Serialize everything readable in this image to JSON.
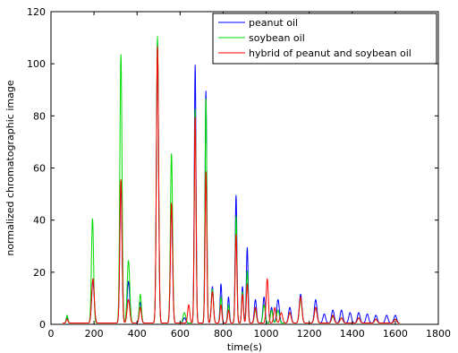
{
  "chart_data": {
    "type": "line",
    "title": "",
    "xlabel": "time(s)",
    "ylabel": "normalized chromatographic image",
    "xlim": [
      0,
      1800
    ],
    "ylim": [
      0,
      120
    ],
    "x_ticks": [
      "0",
      "200",
      "400",
      "600",
      "800",
      "1000",
      "1200",
      "1400",
      "1600",
      "1800"
    ],
    "y_ticks": [
      "0",
      "20",
      "40",
      "60",
      "80",
      "100",
      "120"
    ],
    "grid": false,
    "legend_position": "top-right",
    "baseline": 0.5,
    "tail_end_x": 1620,
    "series": [
      {
        "name": "peanut oil",
        "color": "#0000ff",
        "peaks": [
          [
            75,
            2,
            4
          ],
          [
            195,
            16,
            6
          ],
          [
            325,
            54,
            5
          ],
          [
            360,
            16,
            6
          ],
          [
            415,
            8,
            5
          ],
          [
            495,
            108,
            5
          ],
          [
            560,
            45,
            5
          ],
          [
            620,
            2,
            6
          ],
          [
            670,
            99,
            4
          ],
          [
            720,
            89,
            4
          ],
          [
            750,
            14,
            5
          ],
          [
            790,
            15,
            4
          ],
          [
            825,
            10,
            4
          ],
          [
            860,
            49,
            4
          ],
          [
            890,
            14,
            4
          ],
          [
            912,
            29,
            4
          ],
          [
            950,
            9,
            5
          ],
          [
            990,
            10,
            5
          ],
          [
            1025,
            6,
            5
          ],
          [
            1055,
            9,
            6
          ],
          [
            1110,
            6,
            6
          ],
          [
            1160,
            11,
            6
          ],
          [
            1230,
            9,
            6
          ],
          [
            1270,
            3.5,
            6
          ],
          [
            1310,
            5,
            6
          ],
          [
            1350,
            5,
            6
          ],
          [
            1390,
            4,
            6
          ],
          [
            1430,
            4,
            6
          ],
          [
            1470,
            3.5,
            6
          ],
          [
            1510,
            3,
            6
          ],
          [
            1560,
            3,
            6
          ],
          [
            1600,
            3,
            6
          ]
        ]
      },
      {
        "name": "soybean oil",
        "color": "#00dd00",
        "peaks": [
          [
            75,
            3,
            4
          ],
          [
            193,
            40,
            5
          ],
          [
            325,
            103,
            5
          ],
          [
            360,
            24,
            6
          ],
          [
            415,
            11,
            5
          ],
          [
            495,
            110,
            5
          ],
          [
            560,
            65,
            5
          ],
          [
            620,
            4,
            6
          ],
          [
            670,
            82,
            4
          ],
          [
            720,
            86,
            4
          ],
          [
            750,
            13,
            5
          ],
          [
            790,
            10,
            4
          ],
          [
            825,
            7,
            4
          ],
          [
            860,
            41,
            4
          ],
          [
            890,
            12,
            4
          ],
          [
            912,
            20,
            4
          ],
          [
            950,
            5,
            5
          ],
          [
            990,
            7,
            5
          ],
          [
            1025,
            5,
            5
          ],
          [
            1055,
            5,
            6
          ],
          [
            1110,
            4,
            6
          ],
          [
            1160,
            9,
            6
          ],
          [
            1230,
            6,
            6
          ],
          [
            1310,
            2.5,
            6
          ],
          [
            1350,
            2,
            6
          ],
          [
            1430,
            2,
            6
          ],
          [
            1510,
            1.5,
            6
          ],
          [
            1600,
            1.5,
            6
          ]
        ]
      },
      {
        "name": "hybrid of peanut and soybean oil",
        "color": "#ff0000",
        "peaks": [
          [
            75,
            1.5,
            4
          ],
          [
            195,
            17,
            6
          ],
          [
            325,
            55,
            5
          ],
          [
            360,
            9,
            6
          ],
          [
            415,
            6,
            5
          ],
          [
            495,
            106,
            5
          ],
          [
            560,
            46,
            5
          ],
          [
            640,
            7,
            5
          ],
          [
            670,
            79,
            4
          ],
          [
            720,
            58,
            4
          ],
          [
            750,
            12,
            5
          ],
          [
            790,
            7,
            4
          ],
          [
            825,
            5,
            4
          ],
          [
            860,
            34,
            4
          ],
          [
            890,
            11,
            4
          ],
          [
            912,
            15,
            4
          ],
          [
            950,
            6,
            5
          ],
          [
            1005,
            17,
            5
          ],
          [
            1040,
            6,
            5
          ],
          [
            1070,
            4,
            6
          ],
          [
            1110,
            4,
            6
          ],
          [
            1160,
            10,
            6
          ],
          [
            1230,
            6,
            6
          ],
          [
            1310,
            3,
            6
          ],
          [
            1350,
            2,
            6
          ],
          [
            1430,
            2,
            6
          ],
          [
            1510,
            1.5,
            6
          ],
          [
            1600,
            1.5,
            6
          ]
        ]
      }
    ]
  }
}
